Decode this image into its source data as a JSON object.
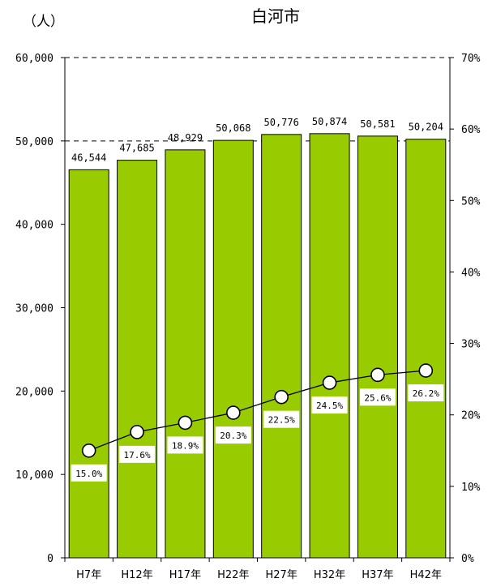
{
  "chart_data": {
    "type": "bar",
    "title": "白河市",
    "y_unit_label": "（人）",
    "categories": [
      "H7年",
      "H12年",
      "H17年",
      "H22年",
      "H27年",
      "H32年",
      "H37年",
      "H42年"
    ],
    "series": [
      {
        "type": "bar",
        "values": [
          46544,
          47685,
          48929,
          50068,
          50776,
          50874,
          50581,
          50204
        ],
        "data_labels": [
          "46,544",
          "47,685",
          "48,929",
          "50,068",
          "50,776",
          "50,874",
          "50,581",
          "50,204"
        ],
        "axis": "left",
        "color": "#99cc00"
      },
      {
        "type": "line",
        "values": [
          15.0,
          17.6,
          18.9,
          20.3,
          22.5,
          24.5,
          25.6,
          26.2
        ],
        "data_labels": [
          "15.0%",
          "17.6%",
          "18.9%",
          "20.3%",
          "22.5%",
          "24.5%",
          "25.6%",
          "26.2%"
        ],
        "axis": "right",
        "color": "#000000"
      }
    ],
    "ylim": [
      0,
      60000
    ],
    "y_ticks": [
      "0",
      "10,000",
      "20,000",
      "30,000",
      "40,000",
      "50,000",
      "60,000"
    ],
    "y2lim": [
      0,
      70
    ],
    "y2_ticks": [
      "0%",
      "10%",
      "20%",
      "30%",
      "40%",
      "50%",
      "60%",
      "70%"
    ],
    "grid": "dashed lines at 50,000 and 60,000",
    "legend": "none"
  }
}
